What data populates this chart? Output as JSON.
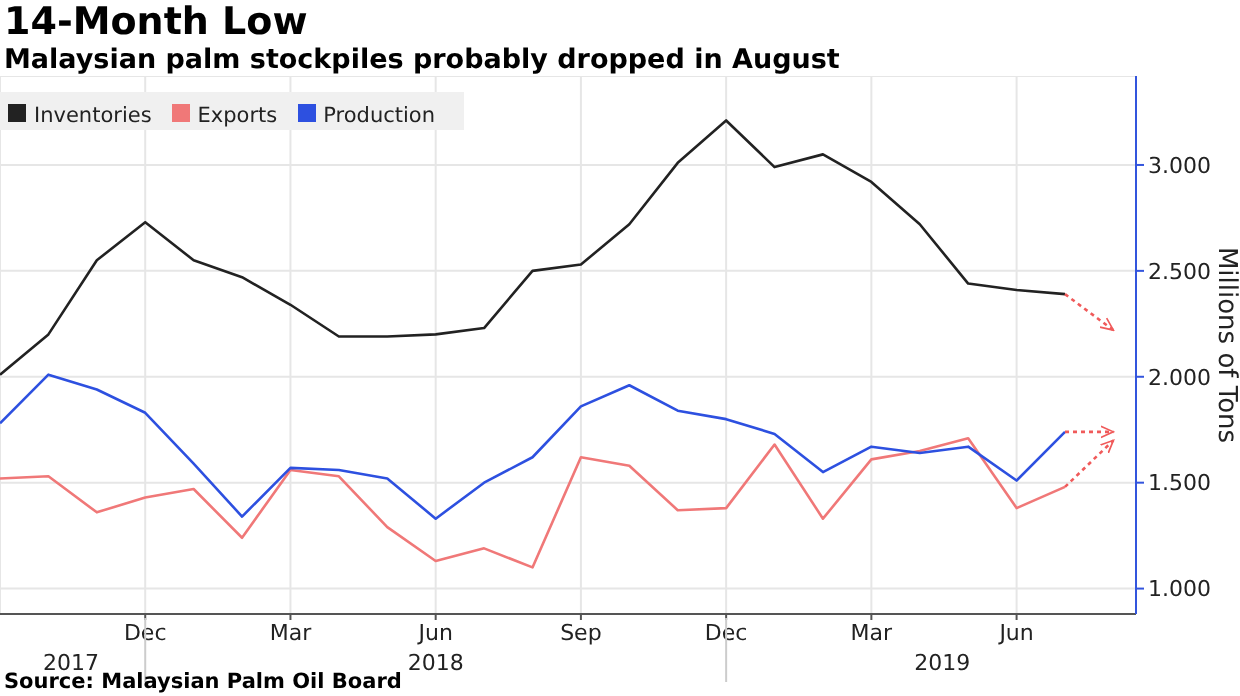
{
  "chart_data": {
    "type": "line",
    "title": "14-Month Low",
    "subtitle": "Malaysian palm stockpiles probably dropped in August",
    "ylabel": "Millions of Tons",
    "x": [
      "2017-09",
      "2017-10",
      "2017-11",
      "2017-12",
      "2018-01",
      "2018-02",
      "2018-03",
      "2018-04",
      "2018-05",
      "2018-06",
      "2018-07",
      "2018-08",
      "2018-09",
      "2018-10",
      "2018-11",
      "2018-12",
      "2019-01",
      "2019-02",
      "2019-03",
      "2019-04",
      "2019-05",
      "2019-06",
      "2019-07"
    ],
    "series": [
      {
        "name": "Inventories",
        "color": "#222222",
        "values": [
          2.01,
          2.2,
          2.55,
          2.73,
          2.55,
          2.47,
          2.34,
          2.19,
          2.19,
          2.2,
          2.23,
          2.5,
          2.53,
          2.72,
          3.01,
          3.21,
          2.99,
          3.05,
          2.92,
          2.72,
          2.44,
          2.41,
          2.39
        ]
      },
      {
        "name": "Exports",
        "color": "#f07878",
        "values": [
          1.52,
          1.53,
          1.36,
          1.43,
          1.47,
          1.24,
          1.56,
          1.53,
          1.29,
          1.13,
          1.19,
          1.1,
          1.62,
          1.58,
          1.37,
          1.38,
          1.68,
          1.33,
          1.61,
          1.65,
          1.71,
          1.38,
          1.48
        ]
      },
      {
        "name": "Production",
        "color": "#2d50e0",
        "values": [
          1.78,
          2.01,
          1.94,
          1.83,
          1.59,
          1.34,
          1.57,
          1.56,
          1.52,
          1.33,
          1.5,
          1.62,
          1.86,
          1.96,
          1.84,
          1.8,
          1.73,
          1.55,
          1.67,
          1.64,
          1.67,
          1.51,
          1.74
        ]
      },
      {
        "type": "line",
        "line_style": "dotted",
        "color": "#f05a5a",
        "x": [
          "2019-07",
          "2019-08"
        ],
        "values": [
          2.39,
          2.22
        ]
      },
      {
        "type": "line",
        "line_style": "dotted",
        "color": "#f05a5a",
        "x": [
          "2019-07",
          "2019-08"
        ],
        "values": [
          1.74,
          1.74
        ]
      },
      {
        "type": "line",
        "line_style": "dotted",
        "color": "#f05a5a",
        "x": [
          "2019-07",
          "2019-08"
        ],
        "values": [
          1.48,
          1.7
        ]
      }
    ],
    "xlim": [
      "2017-09",
      "2019-08-15"
    ],
    "xticks": [
      {
        "value": "2017-12",
        "label": "Dec"
      },
      {
        "value": "2018-03",
        "label": "Mar"
      },
      {
        "value": "2018-06",
        "label": "Jun"
      },
      {
        "value": "2018-09",
        "label": "Sep"
      },
      {
        "value": "2018-12",
        "label": "Dec"
      },
      {
        "value": "2019-03",
        "label": "Mar"
      },
      {
        "value": "2019-06",
        "label": "Jun"
      }
    ],
    "x2lim": [
      "2017-09",
      "2019-08-15"
    ],
    "x2ticks": [
      {
        "value": "2017-10-15",
        "label": "2017"
      },
      {
        "value": "2017-12",
        "label": null
      },
      {
        "value": "2018-06",
        "label": "2018"
      },
      {
        "value": "2018-12",
        "label": null
      },
      {
        "value": "2019-04-15",
        "label": "2019"
      }
    ],
    "ylim": [
      0.88,
      3.42
    ],
    "yticks": [
      {
        "value": 1,
        "label": "1.000"
      },
      {
        "value": 1.5,
        "label": "1.500"
      },
      {
        "value": 2,
        "label": "2.000"
      },
      {
        "value": 2.5,
        "label": "2.500"
      },
      {
        "value": 3,
        "label": "3.000"
      }
    ],
    "grid": true,
    "legend": "top left",
    "marker": "none",
    "line_style": "solid",
    "annotations": [
      "Source: Malaysian Palm Oil Board"
    ]
  }
}
